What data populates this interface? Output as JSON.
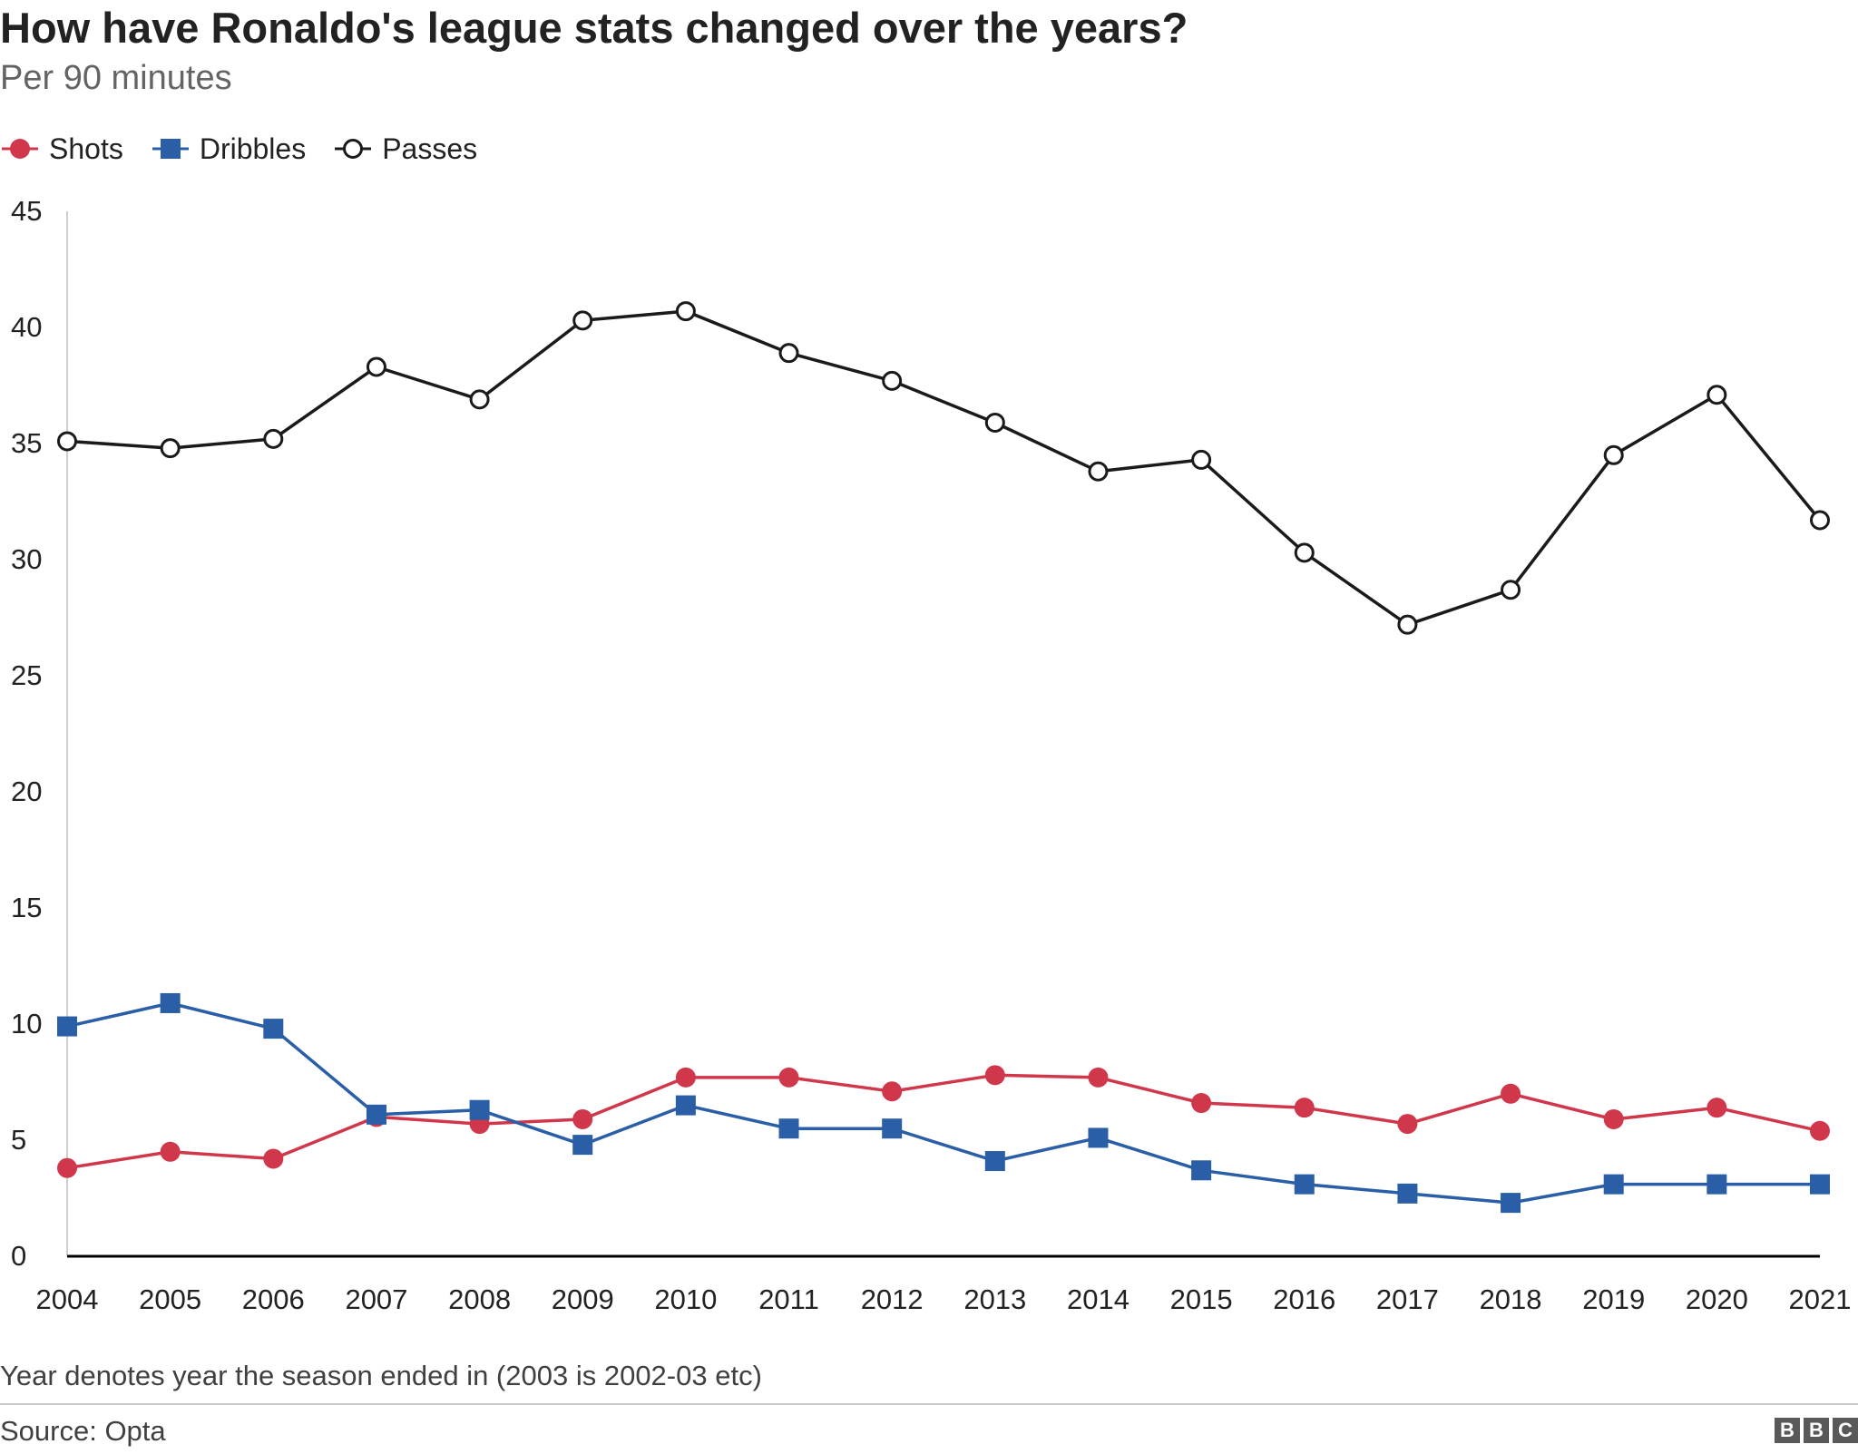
{
  "chart_data": {
    "type": "line",
    "title": "How have Ronaldo's league stats changed over the years?",
    "subtitle": "Per 90 minutes",
    "x": [
      "2004",
      "2005",
      "2006",
      "2007",
      "2008",
      "2009",
      "2010",
      "2011",
      "2012",
      "2013",
      "2014",
      "2015",
      "2016",
      "2017",
      "2018",
      "2019",
      "2020",
      "2021"
    ],
    "series": [
      {
        "name": "Shots",
        "color": "#d1374b",
        "marker": "circle",
        "values": [
          3.8,
          4.5,
          4.2,
          6.0,
          5.7,
          5.9,
          7.7,
          7.7,
          7.1,
          7.8,
          7.7,
          6.6,
          6.4,
          5.7,
          7.0,
          5.9,
          6.4,
          5.4
        ]
      },
      {
        "name": "Dribbles",
        "color": "#2a5ea6",
        "marker": "square",
        "values": [
          9.9,
          10.9,
          9.8,
          6.1,
          6.3,
          4.8,
          6.5,
          5.5,
          5.5,
          4.1,
          5.1,
          3.7,
          3.1,
          2.7,
          2.3,
          3.1,
          3.1,
          3.1
        ]
      },
      {
        "name": "Passes",
        "color": "#1a1a1a",
        "marker": "hollow-circle",
        "values": [
          35.1,
          34.8,
          35.2,
          38.3,
          36.9,
          40.3,
          40.7,
          38.9,
          37.7,
          35.9,
          33.8,
          34.3,
          30.3,
          27.2,
          28.7,
          34.5,
          37.1,
          31.7
        ]
      }
    ],
    "ylim": [
      0,
      45
    ],
    "yticks": [
      "0",
      "5",
      "10",
      "15",
      "20",
      "25",
      "30",
      "35",
      "40",
      "45"
    ],
    "grid": false,
    "legend": "top-left",
    "note": "Year denotes year the season ended in (2003 is 2002-03 etc)",
    "source": "Source: Opta",
    "logo": [
      "B",
      "B",
      "C"
    ]
  }
}
